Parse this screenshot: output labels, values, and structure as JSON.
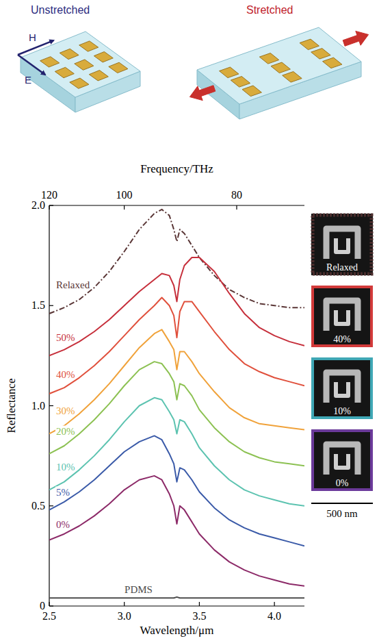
{
  "chart_data": {
    "type": "line",
    "x_label": "Wavelength/μm",
    "y_label": "Reflectance",
    "x2_label": "Frequency/THz",
    "x": [
      2.5,
      2.6,
      2.7,
      2.8,
      2.9,
      3.0,
      3.1,
      3.2,
      3.25,
      3.3,
      3.33,
      3.35,
      3.37,
      3.4,
      3.45,
      3.5,
      3.6,
      3.7,
      3.8,
      3.9,
      4.0,
      4.1,
      4.2
    ],
    "xlim": [
      2.5,
      4.2
    ],
    "xticks": [
      2.5,
      {
        "value": 3,
        "label": "3.0"
      },
      3.5,
      {
        "value": 4,
        "label": "4.0"
      }
    ],
    "x2lim": [
      120,
      71.4
    ],
    "x2ticks": [
      120,
      100,
      80
    ],
    "ylim": [
      0,
      2
    ],
    "yticks": [
      0,
      0.5,
      {
        "value": 1,
        "label": "1.0"
      },
      1.5,
      {
        "value": 2,
        "label": "2.0"
      }
    ],
    "series": [
      {
        "name": "Relaxed",
        "color": "#5a3636",
        "line_style": "dashdot",
        "values": [
          1.46,
          1.49,
          1.53,
          1.59,
          1.67,
          1.77,
          1.88,
          1.96,
          1.98,
          1.95,
          1.88,
          1.82,
          1.88,
          1.86,
          1.8,
          1.74,
          1.65,
          1.58,
          1.54,
          1.51,
          1.5,
          1.49,
          1.49
        ]
      },
      {
        "name": "50%",
        "color": "#c62f3b",
        "line_style": "solid",
        "values": [
          1.25,
          1.28,
          1.32,
          1.37,
          1.43,
          1.5,
          1.57,
          1.63,
          1.66,
          1.65,
          1.6,
          1.52,
          1.63,
          1.7,
          1.74,
          1.74,
          1.67,
          1.56,
          1.46,
          1.39,
          1.35,
          1.32,
          1.3
        ]
      },
      {
        "name": "40%",
        "color": "#e0503c",
        "line_style": "solid",
        "values": [
          1.06,
          1.09,
          1.14,
          1.2,
          1.27,
          1.35,
          1.43,
          1.5,
          1.54,
          1.5,
          1.45,
          1.34,
          1.47,
          1.52,
          1.52,
          1.47,
          1.37,
          1.28,
          1.21,
          1.17,
          1.14,
          1.12,
          1.1
        ]
      },
      {
        "name": "30%",
        "color": "#f0a23a",
        "line_style": "solid",
        "values": [
          0.86,
          0.9,
          0.96,
          1.03,
          1.11,
          1.2,
          1.29,
          1.36,
          1.38,
          1.32,
          1.28,
          1.18,
          1.27,
          1.27,
          1.22,
          1.16,
          1.07,
          0.99,
          0.94,
          0.91,
          0.9,
          0.89,
          0.88
        ]
      },
      {
        "name": "20%",
        "color": "#8cc152",
        "line_style": "solid",
        "values": [
          0.76,
          0.8,
          0.86,
          0.93,
          1.01,
          1.1,
          1.18,
          1.22,
          1.21,
          1.16,
          1.12,
          1.03,
          1.11,
          1.1,
          1.05,
          0.98,
          0.89,
          0.82,
          0.77,
          0.74,
          0.72,
          0.71,
          0.7
        ]
      },
      {
        "name": "10%",
        "color": "#5cc3b0",
        "line_style": "solid",
        "values": [
          0.58,
          0.62,
          0.68,
          0.75,
          0.83,
          0.92,
          1.0,
          1.04,
          1.03,
          0.97,
          0.93,
          0.86,
          0.93,
          0.92,
          0.86,
          0.79,
          0.7,
          0.63,
          0.58,
          0.55,
          0.53,
          0.51,
          0.5
        ]
      },
      {
        "name": "5%",
        "color": "#3a5aa8",
        "line_style": "solid",
        "values": [
          0.48,
          0.52,
          0.57,
          0.63,
          0.7,
          0.77,
          0.82,
          0.85,
          0.83,
          0.76,
          0.71,
          0.62,
          0.69,
          0.68,
          0.63,
          0.57,
          0.49,
          0.43,
          0.39,
          0.36,
          0.34,
          0.32,
          0.3
        ]
      },
      {
        "name": "0%",
        "color": "#8c2a68",
        "line_style": "solid",
        "values": [
          0.33,
          0.36,
          0.4,
          0.45,
          0.51,
          0.58,
          0.63,
          0.65,
          0.63,
          0.56,
          0.5,
          0.41,
          0.5,
          0.48,
          0.42,
          0.36,
          0.28,
          0.22,
          0.18,
          0.15,
          0.13,
          0.11,
          0.1
        ]
      },
      {
        "name": "PDMS",
        "color": "#4d4d4d",
        "line_style": "solid",
        "values": [
          0.04,
          0.04,
          0.04,
          0.04,
          0.04,
          0.04,
          0.04,
          0.04,
          0.04,
          0.04,
          0.04,
          0.045,
          0.04,
          0.04,
          0.04,
          0.04,
          0.04,
          0.04,
          0.04,
          0.04,
          0.04,
          0.04,
          0.04
        ]
      }
    ]
  },
  "schematic": {
    "unstretched": "Unstretched",
    "stretched": "Stretched",
    "h_label": "H",
    "e_label": "E"
  },
  "sem_images": {
    "panels": [
      {
        "label": "Relaxed",
        "color": "#4a2c2c",
        "line_style": "dotted"
      },
      {
        "label": "40%",
        "color": "#d23a3a",
        "line_style": "solid"
      },
      {
        "label": "10%",
        "color": "#3fa7b5",
        "line_style": "solid"
      },
      {
        "label": "0%",
        "color": "#6b3a9a",
        "line_style": "solid"
      }
    ],
    "scale_bar": "500 nm"
  }
}
